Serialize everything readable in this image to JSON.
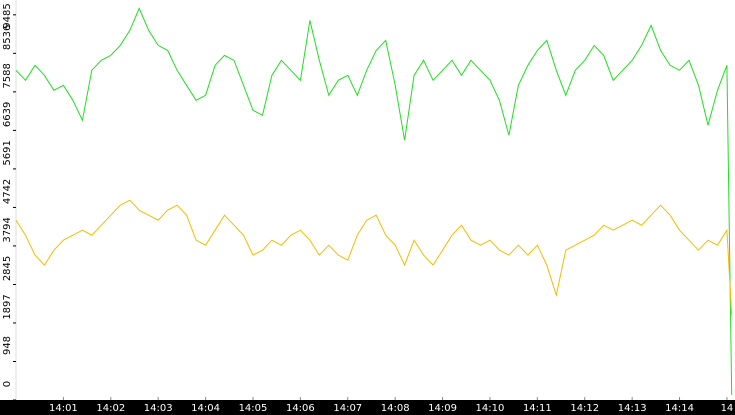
{
  "chart_data": {
    "type": "line",
    "x": [
      0,
      0.2,
      0.4,
      0.6,
      0.8,
      1,
      1.2,
      1.4,
      1.6,
      1.8,
      2,
      2.2,
      2.4,
      2.6,
      2.8,
      3,
      3.2,
      3.4,
      3.6,
      3.8,
      4,
      4.2,
      4.4,
      4.6,
      4.8,
      5,
      5.2,
      5.4,
      5.6,
      5.8,
      6,
      6.2,
      6.4,
      6.6,
      6.8,
      7,
      7.2,
      7.4,
      7.6,
      7.8,
      8,
      8.2,
      8.4,
      8.6,
      8.8,
      9,
      9.2,
      9.4,
      9.6,
      9.8,
      10,
      10.2,
      10.4,
      10.6,
      10.8,
      11,
      11.2,
      11.4,
      11.6,
      11.8,
      12,
      12.2,
      12.4,
      12.6,
      12.8,
      13,
      13.2,
      13.4,
      13.6,
      13.8,
      14,
      14.2,
      14.4,
      14.6,
      14.8,
      15,
      15.1
    ],
    "series": [
      {
        "color": "#22dd22",
        "values": [
          8118,
          7872,
          8241,
          7995,
          7626,
          7749,
          7380,
          6888,
          8118,
          8364,
          8487,
          8733,
          9102,
          9643,
          9102,
          8733,
          8610,
          8118,
          7749,
          7380,
          7503,
          8241,
          8487,
          8364,
          7749,
          7134,
          7011,
          7995,
          8364,
          8118,
          7872,
          9348,
          8364,
          7503,
          7872,
          7995,
          7503,
          8118,
          8610,
          8856,
          7749,
          6396,
          7995,
          8364,
          7872,
          8118,
          8364,
          7995,
          8364,
          8118,
          7872,
          7380,
          6519,
          7749,
          8241,
          8610,
          8856,
          8118,
          7503,
          8118,
          8364,
          8733,
          8487,
          7872,
          8118,
          8364,
          8733,
          9225,
          8610,
          8241,
          8118,
          8364,
          7749,
          6765,
          7626,
          8241,
          123
        ]
      },
      {
        "color": "#f5bb00",
        "values": [
          4428,
          4059,
          3567,
          3321,
          3690,
          3936,
          4059,
          4182,
          4059,
          4305,
          4551,
          4797,
          4920,
          4674,
          4551,
          4428,
          4674,
          4797,
          4551,
          3936,
          3813,
          4182,
          4551,
          4305,
          4059,
          3567,
          3690,
          3936,
          3813,
          4059,
          4182,
          3936,
          3567,
          3813,
          3567,
          3444,
          4059,
          4428,
          4551,
          4059,
          3813,
          3321,
          3936,
          3567,
          3321,
          3690,
          4059,
          4305,
          3936,
          3813,
          3936,
          3690,
          3567,
          3813,
          3567,
          3813,
          3321,
          2583,
          3690,
          3813,
          3936,
          4059,
          4305,
          4182,
          4305,
          4428,
          4305,
          4551,
          4797,
          4551,
          4182,
          3936,
          3690,
          3936,
          3813,
          4182,
          2091
        ]
      }
    ],
    "xlim": [
      0,
      15.17
    ],
    "xticks": [
      {
        "value": 1,
        "label": "14:01"
      },
      {
        "value": 2,
        "label": "14:02"
      },
      {
        "value": 3,
        "label": "14:03"
      },
      {
        "value": 4,
        "label": "14:04"
      },
      {
        "value": 5,
        "label": "14:05"
      },
      {
        "value": 6,
        "label": "14:06"
      },
      {
        "value": 7,
        "label": "14:07"
      },
      {
        "value": 8,
        "label": "14:08"
      },
      {
        "value": 9,
        "label": "14:09"
      },
      {
        "value": 10,
        "label": "14:10"
      },
      {
        "value": 11,
        "label": "14:11"
      },
      {
        "value": 12,
        "label": "14:12"
      },
      {
        "value": 13,
        "label": "14:13"
      },
      {
        "value": 14,
        "label": "14:14"
      },
      {
        "value": 15,
        "label": "14"
      }
    ],
    "ylim": [
      0,
      9850
    ],
    "yticks": [
      0,
      948,
      1897,
      2845,
      3794,
      4742,
      5691,
      6639,
      7588,
      8536,
      9485
    ]
  }
}
